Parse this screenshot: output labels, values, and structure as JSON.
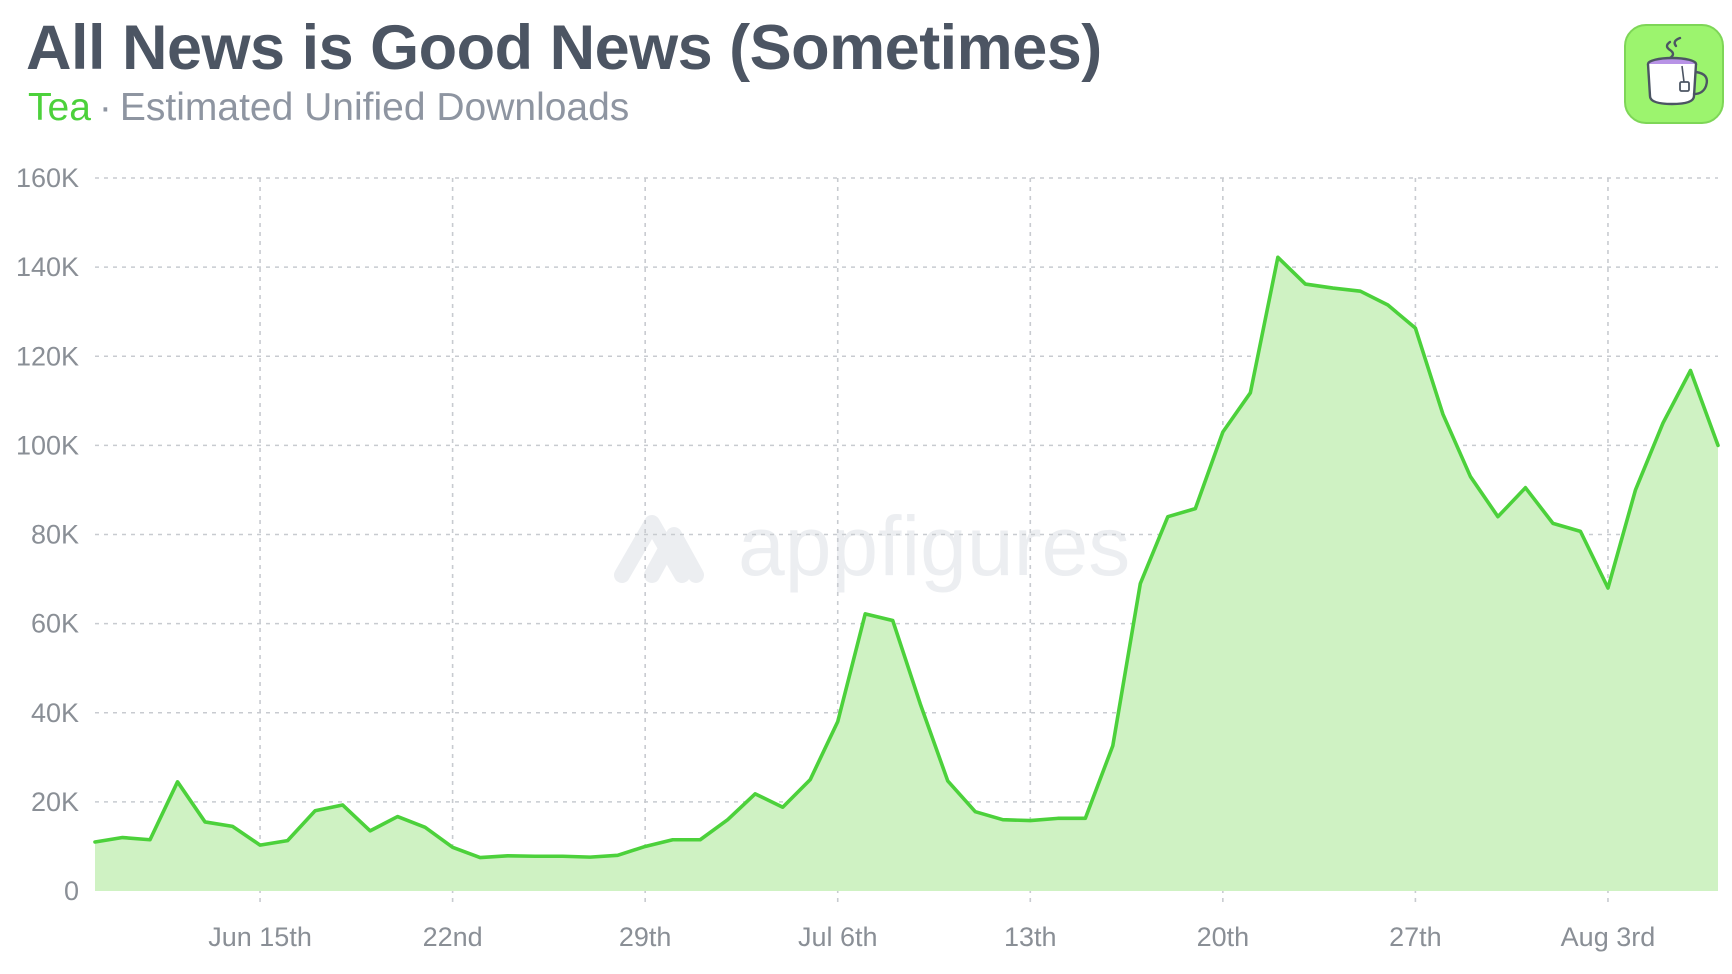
{
  "header": {
    "title": "All News is Good News (Sometimes)",
    "app_name": "Tea",
    "separator": "·",
    "metric": "Estimated Unified Downloads"
  },
  "watermark": "appfigures",
  "app_icon": {
    "icon": "teacup-icon",
    "background": "#9cf46e"
  },
  "colors": {
    "line": "#4cd13b",
    "fill": "#cff2c3",
    "grid": "#c8cbd0",
    "title": "#4c5563",
    "subtitle": "#8e95a1",
    "tick": "#8a8f96"
  },
  "chart_data": {
    "type": "area",
    "title": "All News is Good News (Sometimes)",
    "subtitle": "Tea · Estimated Unified Downloads",
    "xlabel": "",
    "ylabel": "",
    "ylim": [
      0,
      160000
    ],
    "grid": true,
    "legend": "none",
    "y_ticks": [
      0,
      20000,
      40000,
      60000,
      80000,
      100000,
      120000,
      140000,
      160000
    ],
    "y_tick_labels": [
      "0",
      "20K",
      "40K",
      "60K",
      "80K",
      "100K",
      "120K",
      "140K",
      "160K"
    ],
    "x_ticks": [
      {
        "date": "2025-06-15",
        "label": "Jun 15th"
      },
      {
        "date": "2025-06-22",
        "label": "22nd"
      },
      {
        "date": "2025-06-29",
        "label": "29th"
      },
      {
        "date": "2025-07-06",
        "label": "Jul 6th"
      },
      {
        "date": "2025-07-13",
        "label": "13th"
      },
      {
        "date": "2025-07-20",
        "label": "20th"
      },
      {
        "date": "2025-07-27",
        "label": "27th"
      },
      {
        "date": "2025-08-03",
        "label": "Aug 3rd"
      }
    ],
    "x": [
      "2025-06-09",
      "2025-06-10",
      "2025-06-11",
      "2025-06-12",
      "2025-06-13",
      "2025-06-14",
      "2025-06-15",
      "2025-06-16",
      "2025-06-17",
      "2025-06-18",
      "2025-06-19",
      "2025-06-20",
      "2025-06-21",
      "2025-06-22",
      "2025-06-23",
      "2025-06-24",
      "2025-06-25",
      "2025-06-26",
      "2025-06-27",
      "2025-06-28",
      "2025-06-29",
      "2025-06-30",
      "2025-07-01",
      "2025-07-02",
      "2025-07-03",
      "2025-07-04",
      "2025-07-05",
      "2025-07-06",
      "2025-07-07",
      "2025-07-08",
      "2025-07-09",
      "2025-07-10",
      "2025-07-11",
      "2025-07-12",
      "2025-07-13",
      "2025-07-14",
      "2025-07-15",
      "2025-07-16",
      "2025-07-17",
      "2025-07-18",
      "2025-07-19",
      "2025-07-20",
      "2025-07-21",
      "2025-07-22",
      "2025-07-23",
      "2025-07-24",
      "2025-07-25",
      "2025-07-26",
      "2025-07-27",
      "2025-07-28",
      "2025-07-29",
      "2025-07-30",
      "2025-07-31",
      "2025-08-01",
      "2025-08-02",
      "2025-08-03",
      "2025-08-04",
      "2025-08-05",
      "2025-08-06",
      "2025-08-07"
    ],
    "series": [
      {
        "values": [
          11000,
          12000,
          11500,
          24500,
          15500,
          14500,
          10300,
          11300,
          18000,
          19300,
          13500,
          16700,
          14300,
          9800,
          7500,
          7900,
          7800,
          7800,
          7600,
          8000,
          10000,
          11500,
          11500,
          16000,
          21800,
          18800,
          25000,
          38000,
          62200,
          60700,
          42000,
          24700,
          17800,
          16000,
          15800,
          16300,
          16300,
          32600,
          69000,
          84000,
          85800,
          103000,
          111800,
          142200,
          136200,
          135300,
          134600,
          131500,
          126300,
          107000,
          93000,
          84000,
          90500,
          82500,
          80700,
          68000,
          90000,
          105000,
          116800,
          100000
        ]
      }
    ]
  }
}
